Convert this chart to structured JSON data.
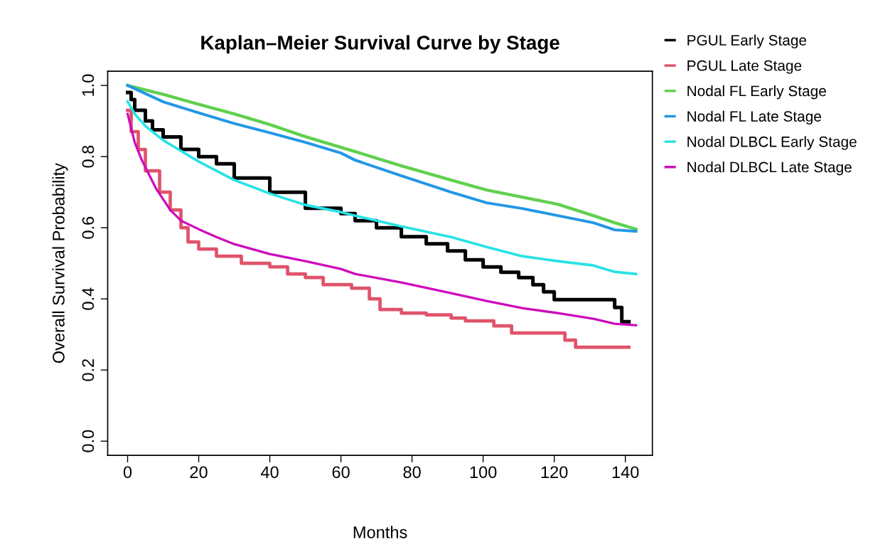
{
  "chart_data": {
    "type": "step",
    "title": "Kaplan–Meier Survival Curve by Stage",
    "xlabel": "Months",
    "ylabel": "Overall Survival Probability",
    "xlim": [
      -5.6,
      147.6
    ],
    "ylim": [
      -0.04,
      1.04
    ],
    "xticks": [
      0,
      20,
      40,
      60,
      80,
      100,
      120,
      140
    ],
    "yticks": [
      {
        "value": 0,
        "label": "0.0"
      },
      {
        "value": 0.2,
        "label": "0.2"
      },
      {
        "value": 0.4,
        "label": "0.4"
      },
      {
        "value": 0.6,
        "label": "0.6"
      },
      {
        "value": 0.8,
        "label": "0.8"
      },
      {
        "value": 1,
        "label": "1.0"
      }
    ],
    "grid": false,
    "legend": "right",
    "marker": "none",
    "line_style": "solid",
    "series": [
      {
        "name": "PGUL Early Stage",
        "color": "#000000",
        "x": [
          0,
          1,
          2,
          5,
          7,
          10,
          15,
          20,
          25,
          30,
          40,
          50,
          60,
          64,
          70,
          77,
          84,
          90,
          95,
          100,
          105,
          110,
          114,
          117,
          120,
          137,
          139,
          141
        ],
        "values": [
          0.98,
          0.96,
          0.93,
          0.9,
          0.875,
          0.855,
          0.82,
          0.8,
          0.78,
          0.74,
          0.7,
          0.655,
          0.64,
          0.62,
          0.6,
          0.575,
          0.555,
          0.535,
          0.51,
          0.49,
          0.475,
          0.46,
          0.44,
          0.42,
          0.398,
          0.376,
          0.336,
          0.336
        ]
      },
      {
        "name": "PGUL Late Stage",
        "color": "#df536b",
        "x": [
          0,
          1,
          3,
          5,
          9,
          12,
          15,
          17,
          20,
          25,
          32,
          40,
          45,
          50,
          55,
          63,
          68,
          71,
          77,
          84,
          91,
          95,
          103,
          108,
          123,
          126,
          141
        ],
        "values": [
          0.93,
          0.87,
          0.82,
          0.76,
          0.7,
          0.65,
          0.6,
          0.56,
          0.54,
          0.52,
          0.5,
          0.49,
          0.47,
          0.46,
          0.44,
          0.43,
          0.4,
          0.37,
          0.36,
          0.355,
          0.346,
          0.338,
          0.324,
          0.304,
          0.284,
          0.264,
          0.264
        ]
      },
      {
        "name": "Nodal FL Early Stage",
        "type": "line",
        "color": "#61d04f",
        "x": [
          0,
          10,
          20,
          30,
          40,
          50,
          60,
          64,
          77,
          91,
          101,
          111,
          121,
          131,
          137,
          143
        ],
        "values": [
          1.0,
          0.975,
          0.947,
          0.92,
          0.89,
          0.856,
          0.826,
          0.814,
          0.774,
          0.734,
          0.706,
          0.686,
          0.666,
          0.634,
          0.614,
          0.596
        ]
      },
      {
        "name": "Nodal FL Late Stage",
        "type": "line",
        "color": "#2297e6",
        "x": [
          0,
          10,
          20,
          30,
          40,
          50,
          60,
          64,
          77,
          91,
          101,
          111,
          121,
          131,
          137,
          143
        ],
        "values": [
          1.0,
          0.954,
          0.923,
          0.893,
          0.867,
          0.84,
          0.81,
          0.79,
          0.746,
          0.7,
          0.67,
          0.654,
          0.634,
          0.614,
          0.594,
          0.59
        ]
      },
      {
        "name": "Nodal DLBCL Early Stage",
        "type": "line",
        "color": "#28e2e5",
        "x": [
          0,
          2,
          5,
          10,
          20,
          30,
          40,
          50,
          60,
          64,
          77,
          91,
          101,
          111,
          121,
          131,
          137,
          143
        ],
        "values": [
          0.955,
          0.92,
          0.886,
          0.846,
          0.786,
          0.734,
          0.696,
          0.664,
          0.644,
          0.634,
          0.604,
          0.574,
          0.546,
          0.52,
          0.506,
          0.494,
          0.476,
          0.47
        ]
      },
      {
        "name": "Nodal DLBCL Late Stage",
        "type": "line",
        "color": "#cd0bbc",
        "x": [
          0,
          1,
          2,
          4,
          6,
          8,
          10,
          12,
          15,
          20,
          25,
          30,
          40,
          50,
          60,
          64,
          77,
          91,
          101,
          111,
          121,
          131,
          137,
          143
        ],
        "values": [
          0.92,
          0.88,
          0.84,
          0.79,
          0.75,
          0.71,
          0.68,
          0.65,
          0.62,
          0.596,
          0.574,
          0.554,
          0.526,
          0.506,
          0.484,
          0.47,
          0.446,
          0.416,
          0.394,
          0.374,
          0.36,
          0.344,
          0.33,
          0.326
        ]
      }
    ]
  }
}
